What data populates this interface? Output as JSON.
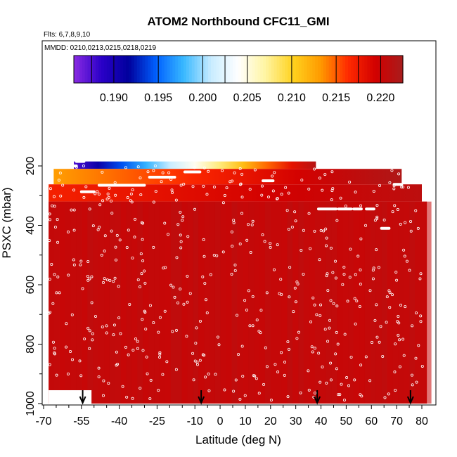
{
  "chart_data": {
    "type": "heatmap",
    "title": "ATOM2 Northbound CFC11_GMI",
    "notes": [
      "Flts: 6,7,8,9,10",
      "MMDD: 0210,0213,0215,0218,0219"
    ],
    "xlabel": "Latitude (deg N)",
    "ylabel": "PSXC (mbar)",
    "xlim": [
      -70,
      82
    ],
    "ylim": [
      1000,
      100
    ],
    "x_ticks": [
      -70,
      -55,
      -40,
      -25,
      -10,
      0,
      10,
      20,
      30,
      40,
      50,
      60,
      70,
      80
    ],
    "x_minor_ticks": [
      -65,
      -60,
      -50,
      -45,
      -35,
      -30,
      -20,
      -15,
      -5,
      5,
      15,
      25,
      35,
      45,
      55,
      65,
      75
    ],
    "y_ticks": [
      200,
      400,
      600,
      800,
      1000
    ],
    "colorbar": {
      "ticks": [
        "0.190",
        "0.195",
        "0.200",
        "0.205",
        "0.210",
        "0.215",
        "0.220"
      ],
      "range": [
        0.1855,
        0.2225
      ],
      "colors": [
        "#8a2be2",
        "#2b00c8",
        "#00009c",
        "#0060ff",
        "#38b8ff",
        "#c8ecff",
        "#ffffff",
        "#fff4a0",
        "#ffd21e",
        "#ff9a00",
        "#ff2a00",
        "#d20000",
        "#a81c1c"
      ]
    },
    "profile_latitudes": [
      -54.5,
      -7.5,
      38.5,
      75.5
    ],
    "surface_value": 0.2205,
    "cells": [
      {
        "lat": [
          -58,
          38
        ],
        "p": [
          185,
          210
        ],
        "value": [
          0.1875,
          0.2215
        ]
      },
      {
        "lat": [
          -66,
          72
        ],
        "p": [
          210,
          262
        ],
        "value": [
          0.213,
          0.222
        ]
      },
      {
        "lat": [
          -68,
          80
        ],
        "p": [
          262,
          320
        ],
        "value": [
          0.217,
          0.221
        ]
      },
      {
        "lat": [
          -68,
          82
        ],
        "p": [
          320,
          1000
        ],
        "value": 0.2205
      }
    ],
    "level_segments": [
      {
        "lat": [
          -57,
          -54
        ],
        "p": 185
      },
      {
        "lat": [
          -60,
          -57
        ],
        "p": 200
      },
      {
        "lat": [
          -48,
          -30
        ],
        "p": 265
      },
      {
        "lat": [
          -28,
          -18
        ],
        "p": 238
      },
      {
        "lat": [
          -14,
          -8
        ],
        "p": 220
      },
      {
        "lat": [
          -55,
          -50
        ],
        "p": 287
      },
      {
        "lat": [
          17,
          21
        ],
        "p": 250
      },
      {
        "lat": [
          39,
          46
        ],
        "p": 345
      },
      {
        "lat": [
          47,
          52
        ],
        "p": 345
      },
      {
        "lat": [
          53,
          56
        ],
        "p": 345
      },
      {
        "lat": [
          58,
          61
        ],
        "p": 345
      },
      {
        "lat": [
          64,
          67
        ],
        "p": 410
      },
      {
        "lat": [
          69,
          72
        ],
        "p": 262
      }
    ]
  }
}
